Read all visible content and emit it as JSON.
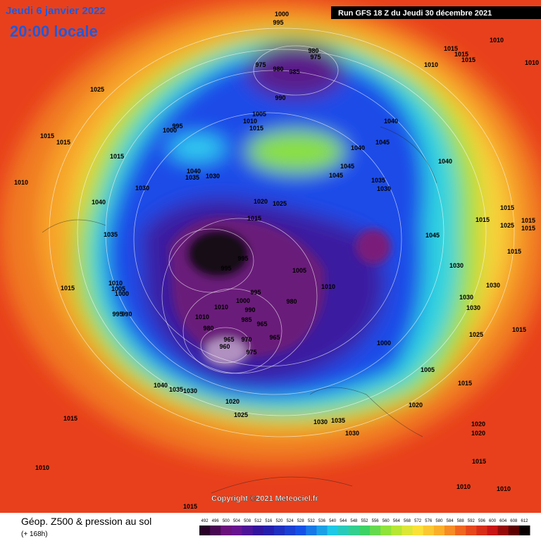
{
  "header": {
    "date": "Jeudi 6 janvier 2022",
    "time": "20:00 locale",
    "run": "Run GFS 18 Z du Jeudi 30 décembre 2021"
  },
  "map": {
    "isobar_labels": [
      1000,
      995,
      980,
      975,
      975,
      980,
      985,
      990,
      1005,
      1010,
      1015,
      1000,
      995,
      1025,
      1015,
      1015,
      1015,
      1010,
      1040,
      1035,
      1030,
      1030,
      1040,
      1035,
      1020,
      1025,
      1015,
      995,
      995,
      1005,
      1010,
      1015,
      1010,
      1005,
      1000,
      995,
      990,
      995,
      1000,
      990,
      985,
      965,
      980,
      1010,
      1010,
      980,
      965,
      970,
      965,
      960,
      975,
      1040,
      1045,
      1040,
      1045,
      1045,
      1035,
      1030,
      1040,
      1015,
      1015,
      1015,
      1010,
      1010,
      1010,
      1015,
      1015,
      1025,
      1015,
      1015,
      1045,
      1030,
      1015,
      1030,
      1030,
      1030,
      1025,
      1015,
      1000,
      1005,
      1015,
      1020,
      1020,
      1020,
      1015,
      1010,
      1010,
      1040,
      1035,
      1030,
      1020,
      1025,
      1030,
      1035,
      1030,
      1015,
      1010,
      1015
    ],
    "copyright": "Copyright ©2021 Meteociel.fr"
  },
  "footer": {
    "title": "Géop. Z500 & pression au sol",
    "lead": "(+ 168h)",
    "scale": [
      492,
      496,
      500,
      504,
      508,
      512,
      516,
      520,
      524,
      528,
      532,
      536,
      540,
      544,
      548,
      552,
      556,
      560,
      564,
      568,
      572,
      576,
      580,
      584,
      588,
      592,
      596,
      600,
      604,
      608,
      612
    ]
  }
}
